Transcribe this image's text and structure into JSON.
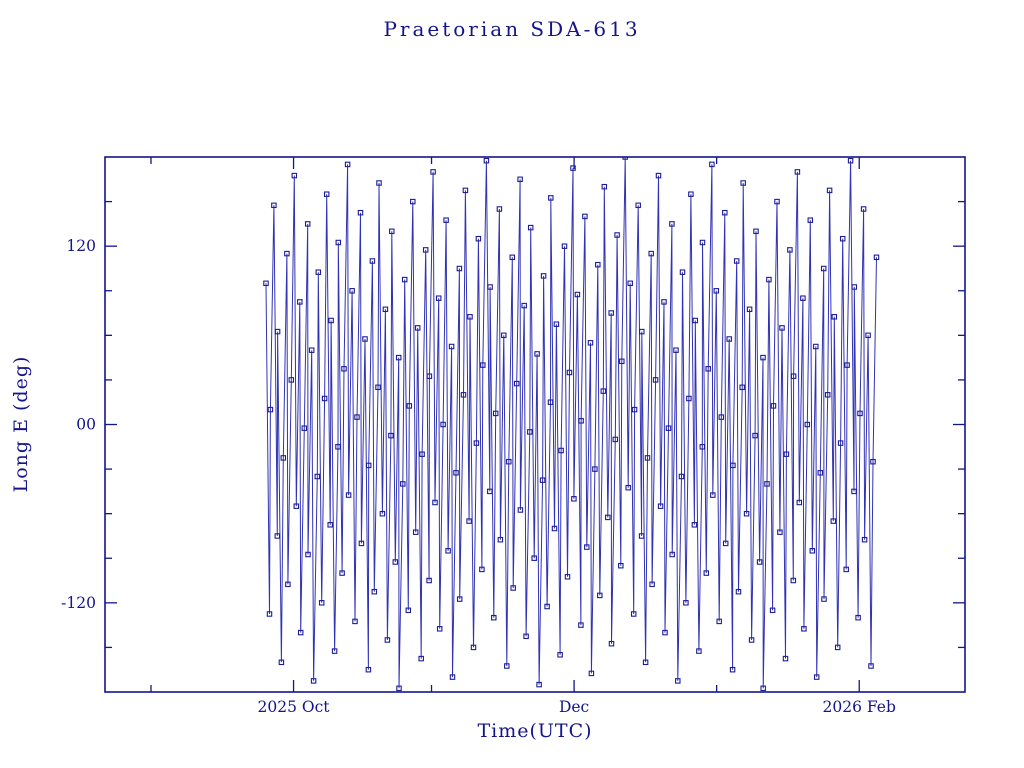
{
  "page": {
    "background": "#ffffff"
  },
  "chart_data": {
    "type": "line",
    "title": "Praetorian SDA-613",
    "xlabel": "Time(UTC)",
    "ylabel": "Long E (deg)",
    "x_axis_days_range": [
      0,
      187
    ],
    "ylim": [
      -180,
      180
    ],
    "grid": false,
    "legend": "none",
    "x_major_ticks": [
      {
        "day": 41,
        "label": "2025 Oct"
      },
      {
        "day": 102,
        "label": "Dec"
      },
      {
        "day": 164,
        "label": "2026 Feb"
      }
    ],
    "x_minor_tick_days": [
      10,
      71,
      133
    ],
    "y_major_ticks": [
      {
        "value": 120,
        "label": "120"
      },
      {
        "value": 0,
        "label": "00"
      },
      {
        "value": -120,
        "label": "-120"
      }
    ],
    "y_minor_tick_step": 30,
    "colors": {
      "text": "#14148c",
      "frame": "#14148c",
      "line": "#3232b4",
      "marker": "#1c1c9a",
      "background": "#ffffff"
    },
    "series": [
      {
        "name": "Praetorian SDA-613 longitude",
        "marker": "open-square",
        "t_start": 35.0,
        "t_step": 0.55,
        "t_jitter_cycle": [
          0,
          0.21,
          -0.14,
          0.08,
          0.27,
          -0.22,
          0.05,
          -0.09,
          0.16,
          -0.18,
          0.02,
          0.11
        ],
        "lon_deg": [
          95,
          -127.5,
          10,
          147.5,
          -75,
          62.5,
          -160,
          -22.5,
          115,
          -107.5,
          30,
          167.5,
          -55,
          82.5,
          -140,
          -2.5,
          135,
          -87.5,
          50,
          -172.5,
          -35,
          102.5,
          -120,
          17.5,
          155,
          -67.5,
          70,
          -152.5,
          -15,
          122.5,
          -100,
          37.5,
          175,
          -47.5,
          90,
          -132.5,
          5,
          142.5,
          -80,
          57.5,
          -165,
          -27.5,
          110,
          -112.5,
          25,
          162.5,
          -60,
          77.5,
          -145,
          -7.5,
          130,
          -92.5,
          45,
          -177.5,
          -40,
          97.5,
          -125,
          12.5,
          150,
          -72.5,
          65,
          -157.5,
          -20,
          117.5,
          -105,
          32.5,
          170,
          -52.5,
          85,
          -137.5,
          0,
          137.5,
          -85,
          52.5,
          -170,
          -32.5,
          105,
          -117.5,
          20,
          157.5,
          -65,
          72.5,
          -150,
          -12.5,
          125,
          -97.5,
          40,
          177.5,
          -45,
          92.5,
          -130,
          7.5,
          145,
          -77.5,
          60,
          -162.5,
          -25,
          112.5,
          -110,
          27.5,
          165,
          -57.5,
          80,
          -142.5,
          -5,
          132.5,
          -90,
          47.5,
          -175,
          -37.5,
          100,
          -122.5,
          15,
          152.5,
          -70,
          67.5,
          -155,
          -17.5,
          120,
          -102.5,
          35,
          172.5,
          -50,
          87.5,
          -135,
          2.5,
          140,
          -82.5,
          55,
          -167.5,
          -30,
          107.5,
          -115,
          22.5,
          160,
          -62.5,
          75,
          -147.5,
          -10,
          127.5,
          -95,
          42.5,
          180,
          -42.5,
          95,
          -127.5,
          10,
          147.5,
          -75,
          62.5,
          -160,
          -22.5,
          115,
          -107.5,
          30,
          167.5,
          -55,
          82.5,
          -140,
          -2.5,
          135,
          -87.5,
          50,
          -172.5,
          -35,
          102.5,
          -120,
          17.5,
          155,
          -67.5,
          70,
          -152.5,
          -15,
          122.5,
          -100,
          37.5,
          175,
          -47.5,
          90,
          -132.5,
          5,
          142.5,
          -80,
          57.5,
          -165,
          -27.5,
          110,
          -112.5,
          25,
          162.5,
          -60,
          77.5,
          -145,
          -7.5,
          130,
          -92.5,
          45,
          -177.5,
          -40,
          97.5,
          -125,
          12.5,
          150,
          -72.5,
          65,
          -157.5,
          -20,
          117.5,
          -105,
          32.5,
          170,
          -52.5,
          85,
          -137.5,
          0,
          137.5,
          -85,
          52.5,
          -170,
          -32.5,
          105,
          -117.5,
          20,
          157.5,
          -65,
          72.5,
          -150,
          -12.5,
          125,
          -97.5,
          40,
          177.5,
          -45,
          92.5,
          -130,
          7.5,
          145,
          -77.5,
          60,
          -162.5,
          -25,
          112.5
        ]
      }
    ]
  }
}
